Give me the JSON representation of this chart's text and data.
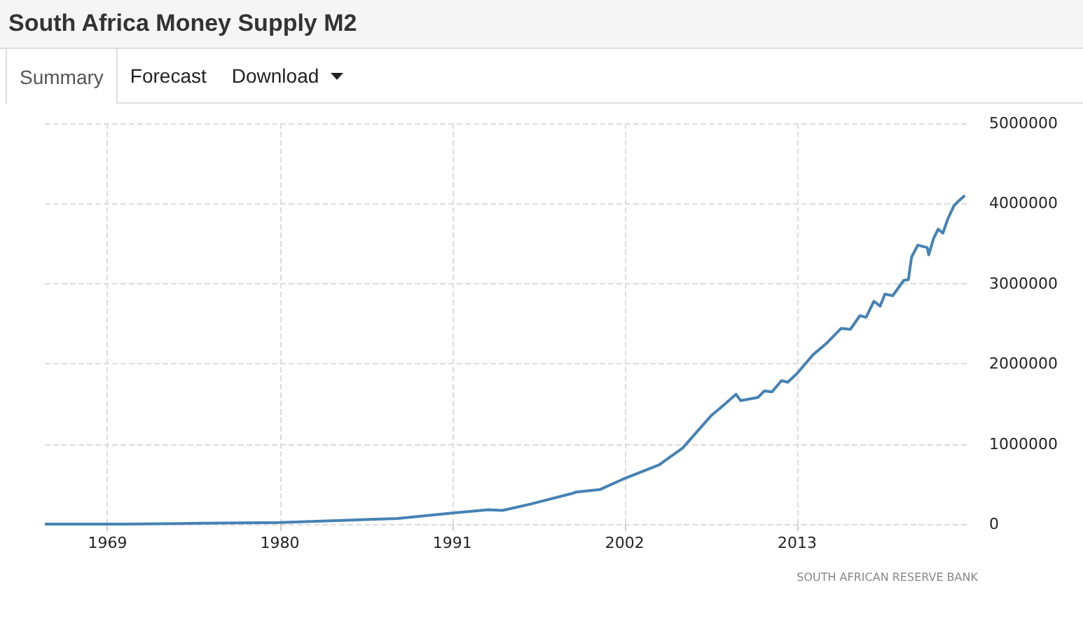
{
  "chart_data": {
    "type": "line",
    "title": "South Africa Money Supply M2",
    "annotations": [
      "Summary",
      "Forecast",
      "Download",
      "SOUTH AFRICAN RESERVE BANK"
    ],
    "xlim": [
      1965,
      2024
    ],
    "xticks": [
      1969,
      1980,
      1991,
      2002,
      2013
    ],
    "ylim": [
      0,
      5000000
    ],
    "yticks": [
      0,
      1000000,
      2000000,
      3000000,
      4000000,
      5000000
    ],
    "grid": true,
    "marker": "none",
    "line_style": "solid",
    "series": [
      {
        "color": "#4682b4",
        "x": [
          1965.0,
          1970,
          1975,
          1980.0,
          1987.5,
          1991.1,
          1993.3,
          1994.2,
          1996.0,
          1998.6,
          1998.9,
          2000.4,
          2002.0,
          2004.2,
          2005.7,
          2007.5,
          2008.4,
          2009.1,
          2009.4,
          2010.5,
          2010.9,
          2011.4,
          2012.0,
          2012.4,
          2013.0,
          2014.0,
          2014.9,
          2015.8,
          2016.4,
          2017.0,
          2017.4,
          2017.9,
          2018.3,
          2018.6,
          2019.1,
          2019.8,
          2020.1,
          2020.3,
          2020.7,
          2021.3,
          2021.4,
          2021.7,
          2022.0,
          2022.3,
          2022.6,
          2023.0,
          2023.3,
          2023.7
        ],
        "values": [
          0,
          0,
          10000,
          20000,
          70000,
          140000,
          180000,
          170000,
          250000,
          380000,
          400000,
          430000,
          570000,
          740000,
          950000,
          1350000,
          1500000,
          1620000,
          1540000,
          1580000,
          1660000,
          1650000,
          1790000,
          1770000,
          1880000,
          2110000,
          2260000,
          2440000,
          2430000,
          2600000,
          2580000,
          2780000,
          2720000,
          2870000,
          2850000,
          3040000,
          3050000,
          3330000,
          3480000,
          3450000,
          3360000,
          3560000,
          3680000,
          3630000,
          3800000,
          3970000,
          4030000,
          4100000
        ]
      }
    ]
  }
}
